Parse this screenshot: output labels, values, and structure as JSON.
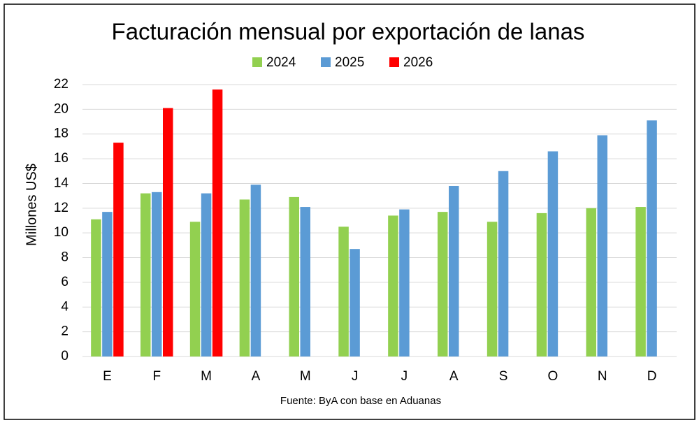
{
  "chart_data": {
    "type": "bar",
    "title": "Facturación mensual por exportación de lanas",
    "y_label": "Millones US$",
    "source": "Fuente: ByA con base en Aduanas",
    "categories": [
      "E",
      "F",
      "M",
      "A",
      "M",
      "J",
      "J",
      "A",
      "S",
      "O",
      "N",
      "D"
    ],
    "series": [
      {
        "name": "2024",
        "color": "#92d050",
        "values": [
          11.1,
          13.2,
          10.9,
          12.7,
          12.9,
          10.5,
          11.4,
          11.7,
          10.9,
          11.6,
          12.0,
          12.1
        ]
      },
      {
        "name": "2025",
        "color": "#5b9bd5",
        "values": [
          11.7,
          13.3,
          13.2,
          13.9,
          12.1,
          8.7,
          11.9,
          13.8,
          15.0,
          16.6,
          17.9,
          19.1
        ]
      },
      {
        "name": "2026",
        "color": "#ff0000",
        "values": [
          17.3,
          20.1,
          21.6,
          null,
          null,
          null,
          null,
          null,
          null,
          null,
          null,
          null
        ]
      }
    ],
    "ylim": [
      0,
      22
    ],
    "yticks": [
      0,
      2,
      4,
      6,
      8,
      10,
      12,
      14,
      16,
      18,
      20,
      22
    ],
    "grid": true,
    "legend": "top"
  }
}
